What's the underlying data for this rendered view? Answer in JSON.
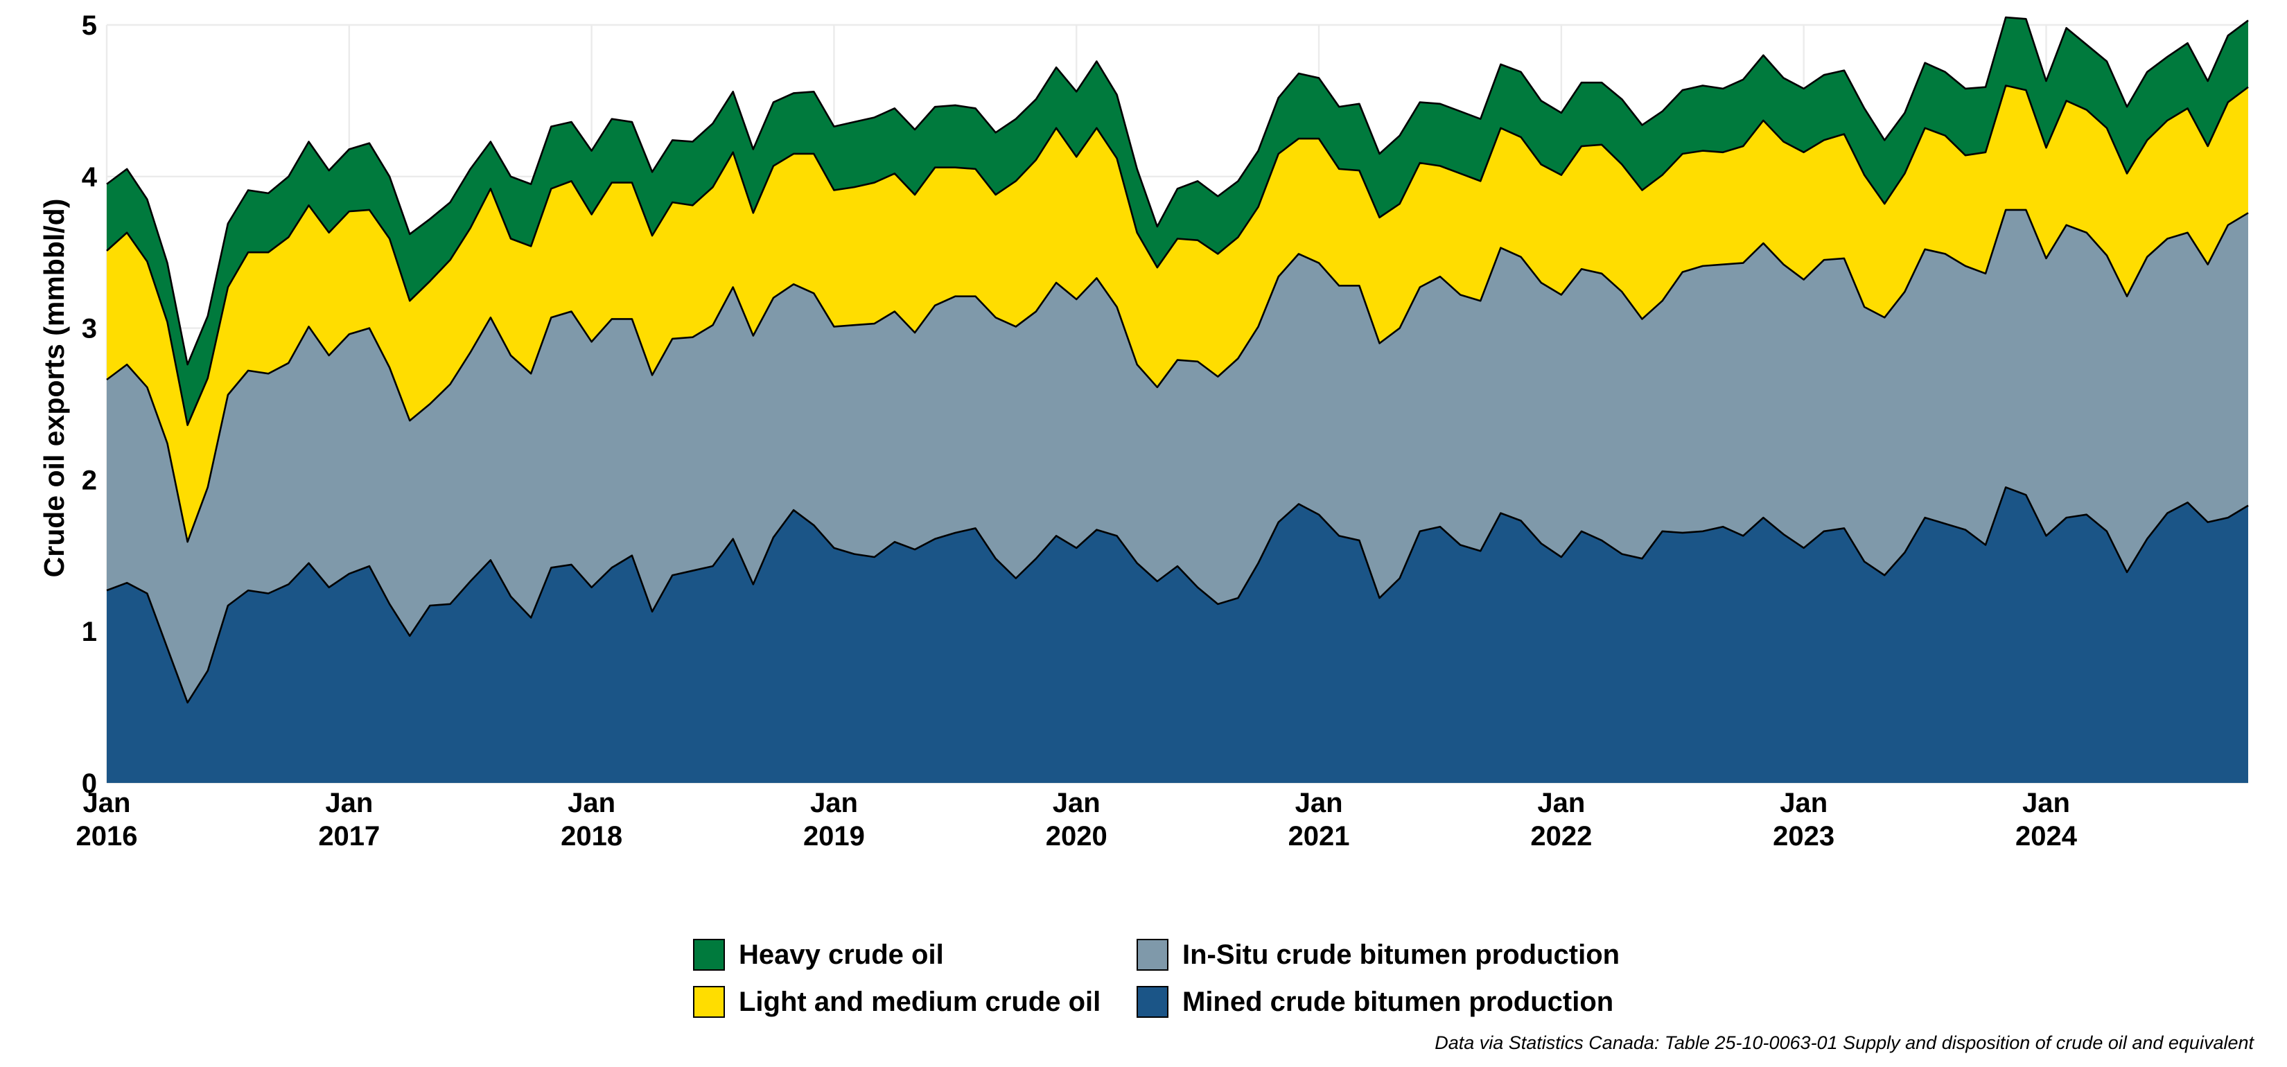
{
  "colors": {
    "heavy": "#007a3d",
    "light": "#ffdd00",
    "insitu": "#7f99aa",
    "mined": "#1b5587"
  },
  "chart_data": {
    "type": "area",
    "stacked": true,
    "title": "",
    "xlabel": "",
    "ylabel": "Crude oil exports (mmbbl/d)",
    "ylim": [
      0,
      5
    ],
    "y_ticks": [
      "0",
      "1",
      "2",
      "3",
      "4",
      "5"
    ],
    "x_tick_labels": [
      {
        "month": "Jan",
        "year": "2016"
      },
      {
        "month": "Jan",
        "year": "2017"
      },
      {
        "month": "Jan",
        "year": "2018"
      },
      {
        "month": "Jan",
        "year": "2019"
      },
      {
        "month": "Jan",
        "year": "2020"
      },
      {
        "month": "Jan",
        "year": "2021"
      },
      {
        "month": "Jan",
        "year": "2022"
      },
      {
        "month": "Jan",
        "year": "2023"
      },
      {
        "month": "Jan",
        "year": "2024"
      }
    ],
    "x_start": "2016-01",
    "x_end": "2024-12",
    "grid": true,
    "legend_position": "bottom",
    "series": [
      {
        "name": "Mined crude bitumen production",
        "color_key": "mined",
        "values": [
          1.27,
          1.32,
          1.25,
          0.89,
          0.53,
          0.74,
          1.17,
          1.27,
          1.25,
          1.31,
          1.45,
          1.29,
          1.38,
          1.43,
          1.18,
          0.97,
          1.17,
          1.18,
          1.33,
          1.47,
          1.23,
          1.09,
          1.42,
          1.44,
          1.29,
          1.42,
          1.5,
          1.13,
          1.37,
          1.4,
          1.43,
          1.61,
          1.31,
          1.62,
          1.8,
          1.7,
          1.55,
          1.51,
          1.49,
          1.59,
          1.54,
          1.61,
          1.65,
          1.68,
          1.48,
          1.35,
          1.48,
          1.63,
          1.55,
          1.67,
          1.63,
          1.45,
          1.33,
          1.43,
          1.29,
          1.18,
          1.22,
          1.45,
          1.72,
          1.84,
          1.77,
          1.63,
          1.6,
          1.22,
          1.35,
          1.66,
          1.69,
          1.57,
          1.53,
          1.78,
          1.73,
          1.58,
          1.49,
          1.66,
          1.6,
          1.51,
          1.48,
          1.66,
          1.65,
          1.66,
          1.69,
          1.63,
          1.75,
          1.64,
          1.55,
          1.66,
          1.68,
          1.46,
          1.37,
          1.52,
          1.75,
          1.71,
          1.67,
          1.57,
          1.95,
          1.9,
          1.63,
          1.75,
          1.77,
          1.66,
          1.39,
          1.61,
          1.78,
          1.85,
          1.72,
          1.75,
          1.83
        ]
      },
      {
        "name": "In-Situ crude bitumen production",
        "color_key": "insitu",
        "values": [
          1.39,
          1.44,
          1.36,
          1.35,
          1.06,
          1.21,
          1.39,
          1.45,
          1.45,
          1.46,
          1.56,
          1.53,
          1.58,
          1.57,
          1.56,
          1.42,
          1.33,
          1.45,
          1.51,
          1.6,
          1.59,
          1.61,
          1.65,
          1.67,
          1.62,
          1.64,
          1.56,
          1.56,
          1.56,
          1.54,
          1.59,
          1.66,
          1.64,
          1.58,
          1.49,
          1.53,
          1.46,
          1.51,
          1.54,
          1.52,
          1.43,
          1.54,
          1.56,
          1.53,
          1.59,
          1.66,
          1.63,
          1.67,
          1.64,
          1.66,
          1.51,
          1.31,
          1.28,
          1.36,
          1.49,
          1.5,
          1.58,
          1.56,
          1.62,
          1.65,
          1.66,
          1.65,
          1.68,
          1.68,
          1.65,
          1.61,
          1.65,
          1.65,
          1.65,
          1.75,
          1.74,
          1.72,
          1.73,
          1.73,
          1.76,
          1.73,
          1.58,
          1.52,
          1.72,
          1.75,
          1.73,
          1.8,
          1.81,
          1.78,
          1.77,
          1.79,
          1.78,
          1.68,
          1.7,
          1.72,
          1.77,
          1.78,
          1.74,
          1.79,
          1.83,
          1.88,
          1.83,
          1.93,
          1.86,
          1.82,
          1.82,
          1.86,
          1.81,
          1.78,
          1.7,
          1.93,
          1.93
        ]
      },
      {
        "name": "Light and medium crude oil",
        "color_key": "light",
        "values": [
          0.85,
          0.87,
          0.83,
          0.8,
          0.77,
          0.72,
          0.71,
          0.78,
          0.8,
          0.83,
          0.8,
          0.81,
          0.81,
          0.78,
          0.85,
          0.79,
          0.81,
          0.82,
          0.82,
          0.85,
          0.77,
          0.84,
          0.85,
          0.86,
          0.84,
          0.9,
          0.9,
          0.92,
          0.9,
          0.87,
          0.91,
          0.89,
          0.81,
          0.87,
          0.86,
          0.92,
          0.9,
          0.91,
          0.93,
          0.91,
          0.91,
          0.91,
          0.85,
          0.84,
          0.81,
          0.96,
          1.0,
          1.02,
          0.94,
          0.99,
          0.98,
          0.87,
          0.79,
          0.8,
          0.8,
          0.81,
          0.8,
          0.79,
          0.81,
          0.76,
          0.82,
          0.77,
          0.76,
          0.83,
          0.82,
          0.82,
          0.73,
          0.8,
          0.79,
          0.79,
          0.79,
          0.78,
          0.79,
          0.81,
          0.85,
          0.84,
          0.85,
          0.83,
          0.78,
          0.76,
          0.74,
          0.77,
          0.81,
          0.81,
          0.84,
          0.79,
          0.82,
          0.87,
          0.75,
          0.78,
          0.8,
          0.78,
          0.73,
          0.8,
          0.82,
          0.79,
          0.73,
          0.82,
          0.81,
          0.84,
          0.81,
          0.77,
          0.78,
          0.82,
          0.78,
          0.81,
          0.83
        ]
      },
      {
        "name": "Heavy crude oil",
        "color_key": "heavy",
        "values": [
          0.44,
          0.42,
          0.41,
          0.39,
          0.4,
          0.41,
          0.42,
          0.41,
          0.39,
          0.4,
          0.42,
          0.41,
          0.41,
          0.44,
          0.41,
          0.44,
          0.41,
          0.38,
          0.39,
          0.31,
          0.41,
          0.41,
          0.41,
          0.39,
          0.42,
          0.42,
          0.4,
          0.42,
          0.41,
          0.42,
          0.42,
          0.4,
          0.42,
          0.42,
          0.4,
          0.41,
          0.42,
          0.43,
          0.43,
          0.43,
          0.43,
          0.4,
          0.41,
          0.4,
          0.41,
          0.41,
          0.4,
          0.4,
          0.43,
          0.44,
          0.42,
          0.42,
          0.27,
          0.33,
          0.39,
          0.38,
          0.37,
          0.37,
          0.37,
          0.43,
          0.4,
          0.41,
          0.44,
          0.42,
          0.45,
          0.4,
          0.41,
          0.41,
          0.41,
          0.42,
          0.43,
          0.42,
          0.41,
          0.42,
          0.41,
          0.43,
          0.43,
          0.42,
          0.42,
          0.43,
          0.42,
          0.44,
          0.43,
          0.42,
          0.42,
          0.43,
          0.42,
          0.44,
          0.42,
          0.4,
          0.43,
          0.42,
          0.44,
          0.43,
          0.45,
          0.47,
          0.44,
          0.48,
          0.43,
          0.44,
          0.44,
          0.45,
          0.42,
          0.43,
          0.43,
          0.44,
          0.44
        ]
      }
    ]
  },
  "legend": {
    "items": [
      {
        "label": "Heavy crude oil",
        "color_key": "heavy"
      },
      {
        "label": "In-Situ crude bitumen production",
        "color_key": "insitu"
      },
      {
        "label": "Light and medium crude oil",
        "color_key": "light"
      },
      {
        "label": "Mined crude bitumen production",
        "color_key": "mined"
      }
    ]
  },
  "caption": "Data via Statistics Canada: Table 25-10-0063-01  Supply and disposition of crude oil and equivalent"
}
